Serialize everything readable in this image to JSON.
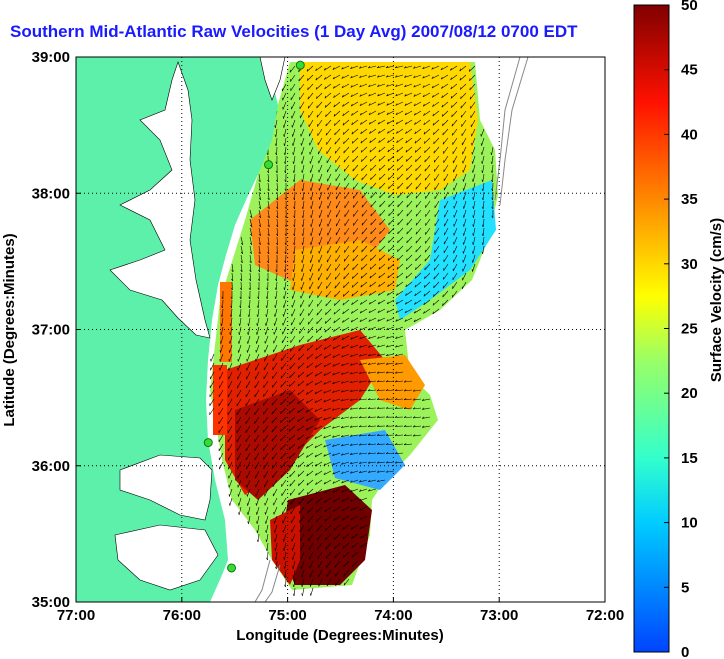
{
  "title": "Southern Mid-Atlantic Raw Velocities (1 Day Avg) 2007/08/12 0700 EDT",
  "axes": {
    "xlabel": "Longitude (Degrees:Minutes)",
    "ylabel": "Latitude (Degrees:Minutes)",
    "x_ticks": [
      "77:00",
      "76:00",
      "75:00",
      "74:00",
      "73:00",
      "72:00"
    ],
    "y_ticks": [
      "39:00",
      "38:00",
      "37:00",
      "36:00",
      "35:00"
    ],
    "xlim": [
      -77,
      -72
    ],
    "ylim": [
      35,
      39
    ],
    "grid": "dotted"
  },
  "colorbar": {
    "label": "Surface Velocity (cm/s)",
    "ticks": [
      "50",
      "45",
      "40",
      "35",
      "30",
      "25",
      "20",
      "15",
      "10",
      "5",
      "0"
    ],
    "range": [
      0,
      50
    ],
    "colormap": "jet"
  },
  "colors": {
    "land": "#5cf0aa",
    "title": "#1a1aff",
    "station": "#33dd33"
  },
  "chart_data": {
    "type": "heatmap",
    "title": "Southern Mid-Atlantic Raw Velocities (1 Day Avg) 2007/08/12 0700 EDT",
    "xlabel": "Longitude (Degrees:Minutes)",
    "ylabel": "Latitude (Degrees:Minutes)",
    "xlim": [
      -77,
      -72
    ],
    "ylim": [
      35,
      39
    ],
    "value_range": [
      0,
      50
    ],
    "units": "cm/s",
    "stations": [
      {
        "lon": -74.88,
        "lat": 38.94
      },
      {
        "lon": -75.18,
        "lat": 38.21
      },
      {
        "lon": -75.75,
        "lat": 36.17
      },
      {
        "lon": -75.53,
        "lat": 35.25
      }
    ]
  }
}
